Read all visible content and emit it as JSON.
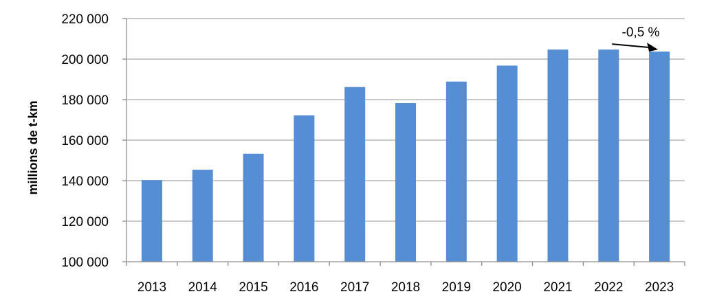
{
  "chart_data": {
    "type": "bar",
    "categories": [
      "2013",
      "2014",
      "2015",
      "2016",
      "2017",
      "2018",
      "2019",
      "2020",
      "2021",
      "2022",
      "2023"
    ],
    "values": [
      140300,
      145400,
      153300,
      172200,
      186200,
      178300,
      188900,
      196800,
      204700,
      204700,
      203700
    ],
    "ylabel": "millions de t-km",
    "ylim": [
      100000,
      220000
    ],
    "y_ticks": [
      100000,
      120000,
      140000,
      160000,
      180000,
      200000,
      220000
    ],
    "y_tick_labels": [
      "100 000",
      "120 000",
      "140 000",
      "160 000",
      "180 000",
      "200 000",
      "220 000"
    ],
    "grid": true,
    "bar_color": "#558ED5",
    "annotation": {
      "text": "-0,5 %",
      "from_category": "2022",
      "to_category": "2023"
    }
  }
}
